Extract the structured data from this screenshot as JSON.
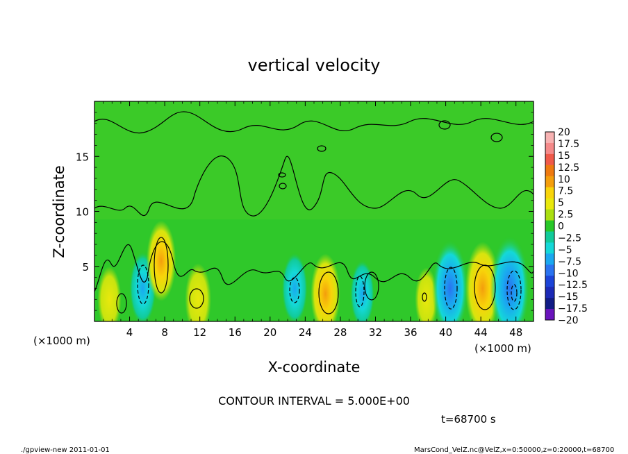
{
  "chart_data": {
    "type": "heatmap",
    "title": "vertical velocity",
    "xlabel": "X-coordinate",
    "ylabel": "Z-coordinate",
    "x_unit_left": "(×1000 m)",
    "x_unit_right": "(×1000 m)",
    "xlim": [
      0,
      50
    ],
    "ylim": [
      0,
      20
    ],
    "xticks": [
      "4",
      "8",
      "12",
      "16",
      "20",
      "24",
      "28",
      "32",
      "36",
      "40",
      "44",
      "48"
    ],
    "yticks": [
      "5",
      "10",
      "15"
    ],
    "colorbar": {
      "levels": [
        "20",
        "17.5",
        "15",
        "12.5",
        "10",
        "7.5",
        "5",
        "2.5",
        "0",
        "−2.5",
        "−5",
        "−7.5",
        "−10",
        "−12.5",
        "−15",
        "−17.5",
        "−20"
      ],
      "colors": [
        "#f7b2b2",
        "#f58a8a",
        "#f05a4a",
        "#ef7a10",
        "#f49e0c",
        "#f8d40a",
        "#e9e80d",
        "#aadf10",
        "#28c828",
        "#11cb9a",
        "#14d8d8",
        "#1aa8f0",
        "#2a73f0",
        "#1c44d8",
        "#1c2ab6",
        "#111c86",
        "#6a14bc"
      ]
    },
    "features": [
      {
        "x": 1.7,
        "z": 2.0,
        "w": 2.5,
        "sign": "up"
      },
      {
        "x": 5.5,
        "z": 3.0,
        "w": -4.5,
        "sign": "down"
      },
      {
        "x": 7.6,
        "z": 5.5,
        "w": 6.0,
        "sign": "up"
      },
      {
        "x": 11.8,
        "z": 2.0,
        "w": 4.0,
        "sign": "up"
      },
      {
        "x": 22.8,
        "z": 3.0,
        "w": -4.0,
        "sign": "down"
      },
      {
        "x": 26.3,
        "z": 2.5,
        "w": 6.0,
        "sign": "up"
      },
      {
        "x": 30.5,
        "z": 2.5,
        "w": -3.0,
        "sign": "down"
      },
      {
        "x": 37.8,
        "z": 2.0,
        "w": 2.0,
        "sign": "up"
      },
      {
        "x": 40.5,
        "z": 3.0,
        "w": -10.0,
        "sign": "down"
      },
      {
        "x": 44.2,
        "z": 3.0,
        "w": 9.0,
        "sign": "up"
      },
      {
        "x": 47.3,
        "z": 3.0,
        "w": -12.0,
        "sign": "down"
      }
    ],
    "grid": false,
    "legend_placement": "right"
  },
  "contour_interval": "CONTOUR INTERVAL = 5.000E+00",
  "time_label": "t=68700 s",
  "footer_left": "./gpview-new   2011-01-01",
  "footer_right": "MarsCond_VelZ.nc@VelZ,x=0:50000,z=0:20000,t=68700"
}
